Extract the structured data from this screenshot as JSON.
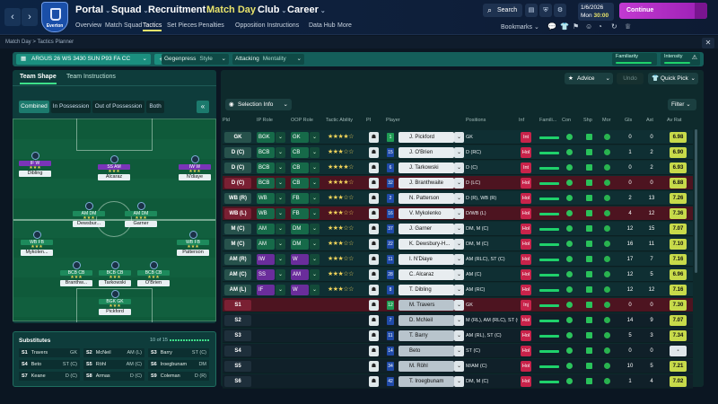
{
  "topbar": {
    "nav": [
      {
        "label": "Portal"
      },
      {
        "label": "Squad"
      },
      {
        "label": "Recruitment"
      },
      {
        "label": "Match Day"
      },
      {
        "label": "Club"
      },
      {
        "label": "Career"
      }
    ],
    "subnav": [
      "Overview",
      "Match Squad",
      "Tactics",
      "Set Pieces",
      "Penalties",
      "Opposition Instructions",
      "Data Hub",
      "More"
    ],
    "club_name": "Everton",
    "search_label": "Search",
    "date_line1": "1/6/2026",
    "date_line2": "Mon",
    "date_time": "30:00",
    "continue_label": "Continue",
    "bookmarks_label": "Bookmarks"
  },
  "breadcrumb": {
    "parent": "Match Day",
    "sep": ">",
    "current": "Tactics Planner"
  },
  "tactic_bar": {
    "tactic_name": "ARGUS 26 WS 3430 SUN P93 FA CC",
    "style_value": "Gegenpress",
    "style_label": "Style",
    "mentality_value": "Attacking",
    "mentality_label": "Mentality",
    "familiarity_label": "Familiarity",
    "familiarity_level": 0.95,
    "intensity_label": "Intensity",
    "intensity_level": 0.8
  },
  "left_tabs": {
    "shape": "Team Shape",
    "instructions": "Team Instructions"
  },
  "possession_tabs": [
    "Combined",
    "In Possession",
    "Out of Possession",
    "Both"
  ],
  "pitch_players": [
    {
      "name": "Dibling",
      "role": "IF",
      "role2": "W"
    },
    {
      "name": "Alcaraz",
      "role": "SS",
      "role2": "AM"
    },
    {
      "name": "N'diaye",
      "role": "IW",
      "role2": "W"
    },
    {
      "name": "Dewsbur...",
      "role": "AM",
      "role2": "DM"
    },
    {
      "name": "Garner",
      "role": "AM",
      "role2": "DM"
    },
    {
      "name": "Mykolen...",
      "role": "WB",
      "role2": "FB"
    },
    {
      "name": "Patterson",
      "role": "WB",
      "role2": "FB"
    },
    {
      "name": "Branthw...",
      "role": "BCB",
      "role2": "CB"
    },
    {
      "name": "Tarkowski",
      "role": "BCB",
      "role2": "CB"
    },
    {
      "name": "O'Brien",
      "role": "BCB",
      "role2": "CB"
    },
    {
      "name": "Pickford",
      "role": "BGK",
      "role2": "GK"
    }
  ],
  "subs": {
    "title": "Substitutes",
    "count": "10 of 15",
    "list": [
      {
        "slot": "S1",
        "name": "Travers",
        "pos": "GK"
      },
      {
        "slot": "S2",
        "name": "McNeil",
        "pos": "AM (L)"
      },
      {
        "slot": "S3",
        "name": "Barry",
        "pos": "ST (C)"
      },
      {
        "slot": "S4",
        "name": "Beto",
        "pos": "ST (C)"
      },
      {
        "slot": "S5",
        "name": "Röhl",
        "pos": "AM (C)"
      },
      {
        "slot": "S6",
        "name": "Iroegbunam",
        "pos": "DM"
      },
      {
        "slot": "S7",
        "name": "Keane",
        "pos": "D (C)"
      },
      {
        "slot": "S8",
        "name": "Armas",
        "pos": "D (C)"
      },
      {
        "slot": "S9",
        "name": "Coleman",
        "pos": "D (R)"
      }
    ]
  },
  "right_controls": {
    "advice": "Advice",
    "undo": "Undo",
    "quick_pick": "Quick Pick",
    "selection_info": "Selection Info",
    "filter": "Filter"
  },
  "table_headers": [
    "Pld",
    "IP Role",
    "OOP Role",
    "Tactic Ability",
    "PI",
    "Player",
    "Positions",
    "Inf",
    "Famili...",
    "Con",
    "Shp",
    "Mor",
    "Gls",
    "Ast",
    "Av Rat"
  ],
  "rows": [
    {
      "pos": "GK",
      "ip": "BGK",
      "oop": "GK",
      "stars": "★★★★☆",
      "num": "1",
      "name": "J. Pickford",
      "positions": "GK",
      "inf": "Int",
      "gls": "0",
      "ast": "0",
      "rat": "6.98",
      "ipv": "green",
      "oopv": "green",
      "red": false
    },
    {
      "pos": "D (C)",
      "ip": "BCB",
      "oop": "CB",
      "stars": "★★★☆☆",
      "num": "15",
      "name": "J. O'Brien",
      "positions": "D (RC)",
      "inf": "Hol",
      "gls": "1",
      "ast": "2",
      "rat": "6.90",
      "ipv": "green",
      "oopv": "green",
      "red": false
    },
    {
      "pos": "D (C)",
      "ip": "BCB",
      "oop": "CB",
      "stars": "★★★★☆",
      "num": "6",
      "name": "J. Tarkowski",
      "positions": "D (C)",
      "inf": "Int",
      "gls": "0",
      "ast": "2",
      "rat": "6.93",
      "ipv": "green",
      "oopv": "green",
      "red": false
    },
    {
      "pos": "D (C)",
      "ip": "BCB",
      "oop": "CB",
      "stars": "★★★★☆",
      "num": "32",
      "name": "J. Branthwaite",
      "positions": "D (LC)",
      "inf": "Hol",
      "gls": "0",
      "ast": "0",
      "rat": "6.88",
      "ipv": "green",
      "oopv": "green",
      "red": true
    },
    {
      "pos": "WB (R)",
      "ip": "WB",
      "oop": "FB",
      "stars": "★★★☆☆",
      "num": "2",
      "name": "N. Patterson",
      "positions": "D (R), WB (R)",
      "inf": "Hol",
      "gls": "2",
      "ast": "13",
      "rat": "7.26",
      "ipv": "green",
      "oopv": "green",
      "red": false
    },
    {
      "pos": "WB (L)",
      "ip": "WB",
      "oop": "FB",
      "stars": "★★★☆☆",
      "num": "16",
      "name": "V. Mykolenko",
      "positions": "D/WB (L)",
      "inf": "Hol",
      "gls": "4",
      "ast": "12",
      "rat": "7.36",
      "ipv": "green",
      "oopv": "green",
      "red": true
    },
    {
      "pos": "M (C)",
      "ip": "AM",
      "oop": "DM",
      "stars": "★★★☆☆",
      "num": "37",
      "name": "J. Garner",
      "positions": "DM, M (C)",
      "inf": "Hol",
      "gls": "12",
      "ast": "15",
      "rat": "7.07",
      "ipv": "green",
      "oopv": "green",
      "red": false
    },
    {
      "pos": "M (C)",
      "ip": "AM",
      "oop": "DM",
      "stars": "★★★☆☆",
      "num": "22",
      "name": "K. Dewsbury-H...",
      "positions": "DM, M (C)",
      "inf": "Hol",
      "gls": "16",
      "ast": "11",
      "rat": "7.10",
      "ipv": "green",
      "oopv": "green",
      "red": false
    },
    {
      "pos": "AM (R)",
      "ip": "IW",
      "oop": "W",
      "stars": "★★★☆☆",
      "num": "11",
      "name": "I. N'Diaye",
      "positions": "AM (RLC), ST (C)",
      "inf": "Hol",
      "gls": "17",
      "ast": "7",
      "rat": "7.16",
      "ipv": "purple",
      "oopv": "purple",
      "red": false
    },
    {
      "pos": "AM (C)",
      "ip": "SS",
      "oop": "AM",
      "stars": "★★★☆☆",
      "num": "28",
      "name": "C. Alcaraz",
      "positions": "AM (C)",
      "inf": "Hol",
      "gls": "12",
      "ast": "5",
      "rat": "6.96",
      "ipv": "purple",
      "oopv": "purple",
      "red": false
    },
    {
      "pos": "AM (L)",
      "ip": "IF",
      "oop": "W",
      "stars": "★★★☆☆",
      "num": "8",
      "name": "T. Dibling",
      "positions": "AM (RC)",
      "inf": "Hol",
      "gls": "12",
      "ast": "12",
      "rat": "7.16",
      "ipv": "purple",
      "oopv": "purple",
      "red": false
    },
    {
      "pos": "S1",
      "ip": "",
      "oop": "",
      "stars": "",
      "num": "12",
      "name": "M. Travers",
      "positions": "GK",
      "inf": "Inj",
      "gls": "0",
      "ast": "0",
      "rat": "7.30",
      "ipv": "",
      "oopv": "",
      "red": true,
      "sub": true
    },
    {
      "pos": "S2",
      "ip": "",
      "oop": "",
      "stars": "",
      "num": "7",
      "name": "D. McNeil",
      "positions": "M (RL), AM (RLC), ST (C)",
      "inf": "Hol",
      "gls": "14",
      "ast": "9",
      "rat": "7.07",
      "sub": true
    },
    {
      "pos": "S3",
      "ip": "",
      "oop": "",
      "stars": "",
      "num": "11",
      "name": "T. Barry",
      "positions": "AM (RL), ST (C)",
      "inf": "Hol",
      "gls": "5",
      "ast": "3",
      "rat": "7.34",
      "sub": true
    },
    {
      "pos": "S4",
      "ip": "",
      "oop": "",
      "stars": "",
      "num": "14",
      "name": "Beto",
      "positions": "ST (C)",
      "inf": "Hol",
      "gls": "0",
      "ast": "0",
      "rat": "-",
      "sub": true
    },
    {
      "pos": "S5",
      "ip": "",
      "oop": "",
      "stars": "",
      "num": "34",
      "name": "M. Röhl",
      "positions": "M/AM (C)",
      "inf": "Hol",
      "gls": "10",
      "ast": "5",
      "rat": "7.21",
      "sub": true
    },
    {
      "pos": "S6",
      "ip": "",
      "oop": "",
      "stars": "",
      "num": "42",
      "name": "T. Iroegbunam",
      "positions": "DM, M (C)",
      "inf": "Hol",
      "gls": "1",
      "ast": "4",
      "rat": "7.02",
      "sub": true
    }
  ]
}
